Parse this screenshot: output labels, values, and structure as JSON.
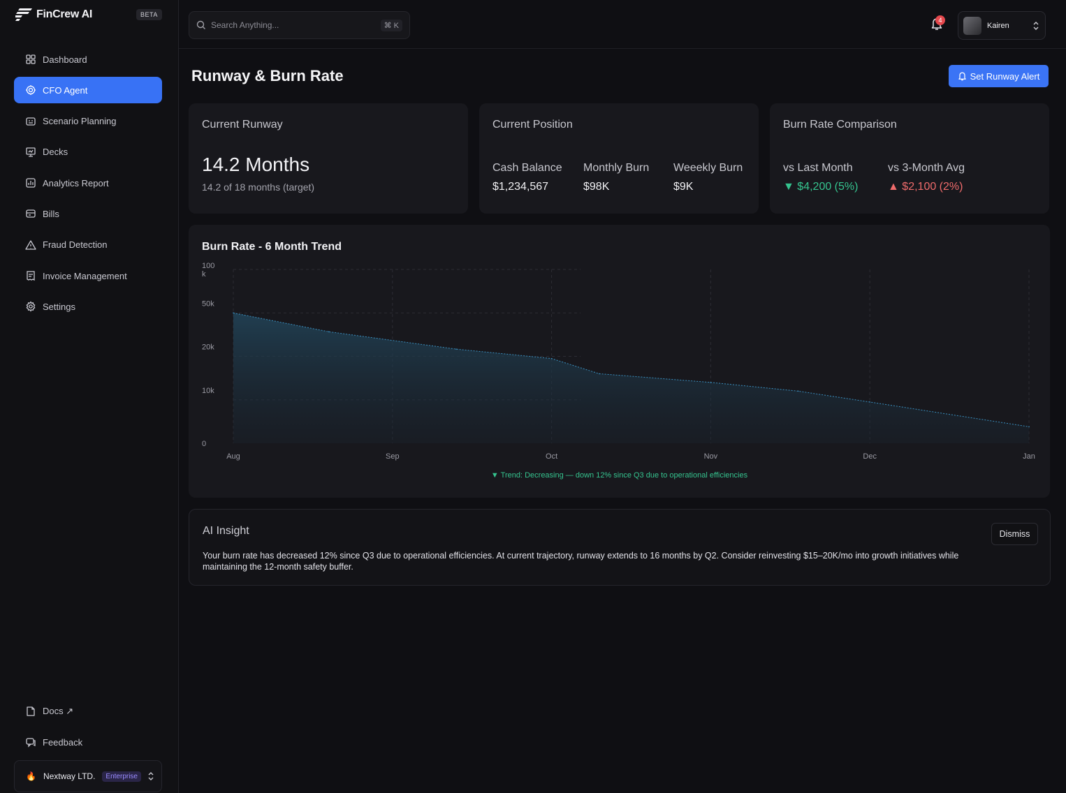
{
  "app": {
    "name": "FinCrew AI",
    "beta_label": "BETA"
  },
  "sidebar": {
    "items": [
      {
        "label": "Dashboard",
        "icon": "grid-icon"
      },
      {
        "label": "CFO Agent",
        "icon": "agent-icon",
        "active": true
      },
      {
        "label": "Scenario Planning",
        "icon": "scenario-icon"
      },
      {
        "label": "Decks",
        "icon": "presentation-icon"
      },
      {
        "label": "Analytics Report",
        "icon": "analytics-icon"
      },
      {
        "label": "Bills",
        "icon": "bills-icon"
      },
      {
        "label": "Fraud Detection",
        "icon": "warning-icon"
      },
      {
        "label": "Invoice Management",
        "icon": "invoice-icon"
      },
      {
        "label": "Settings",
        "icon": "gear-icon"
      }
    ],
    "bottom_items": [
      {
        "label": "Docs ↗",
        "icon": "docs-icon"
      },
      {
        "label": "Feedback",
        "icon": "feedback-icon"
      }
    ],
    "org": {
      "name": "Nextway LTD.",
      "plan": "Enterprise"
    }
  },
  "topbar": {
    "search_placeholder": "Search Anything...",
    "search_shortcut": "⌘ K",
    "notification_count": "4",
    "user_name": "Kairen"
  },
  "page": {
    "title": "Runway & Burn Rate",
    "alert_button": "Set Runway Alert"
  },
  "cards": {
    "runway": {
      "title": "Current Runway",
      "value": "14.2 Months",
      "sub": "14.2 of 18 months (target)"
    },
    "position": {
      "title": "Current Position",
      "metrics": [
        {
          "label": "Cash Balance",
          "value": "$1,234,567"
        },
        {
          "label": "Monthly Burn",
          "value": "$98K"
        },
        {
          "label": "Weeekly Burn",
          "value": "$9K"
        }
      ]
    },
    "comparison": {
      "title": "Burn Rate Comparison",
      "metrics": [
        {
          "label": "vs Last Month",
          "value": "$4,200 (5%)",
          "direction": "down",
          "color": "#35c48f"
        },
        {
          "label": "vs 3-Month Avg",
          "value": "$2,100 (2%)",
          "direction": "up",
          "color": "#ef6b6b"
        }
      ]
    }
  },
  "chart_data": {
    "type": "area",
    "title": "Burn Rate - 6 Month Trend",
    "x": [
      "Aug",
      "Sep",
      "Oct",
      "Nov",
      "Dec",
      "Jan"
    ],
    "y_ticks": [
      "100\nk",
      "50k",
      "20k",
      "10k",
      "0"
    ],
    "series": [
      {
        "points": [
          {
            "x": 0,
            "y": 50000
          },
          {
            "x": 0.6,
            "y": 37000
          },
          {
            "x": 1.4,
            "y": 25000
          },
          {
            "x": 2.0,
            "y": 19500
          },
          {
            "x": 2.3,
            "y": 16000
          },
          {
            "x": 3.0,
            "y": 14000
          },
          {
            "x": 3.55,
            "y": 12000
          },
          {
            "x": 4.0,
            "y": 9500
          },
          {
            "x": 5.0,
            "y": 3800
          }
        ]
      }
    ],
    "color": "#3a8fbf",
    "grid": true,
    "trend_note": "▼ Trend: Decreasing — down 12% since Q3 due to operational efficiencies"
  },
  "insight": {
    "title": "AI Insight",
    "text": "Your burn rate has decreased 12% since Q3 due to operational efficiencies. At current trajectory, runway extends to 16 months by Q2. Consider reinvesting $15–20K/mo into growth initiatives while maintaining the 12-month safety buffer.",
    "dismiss_label": "Dismiss"
  }
}
